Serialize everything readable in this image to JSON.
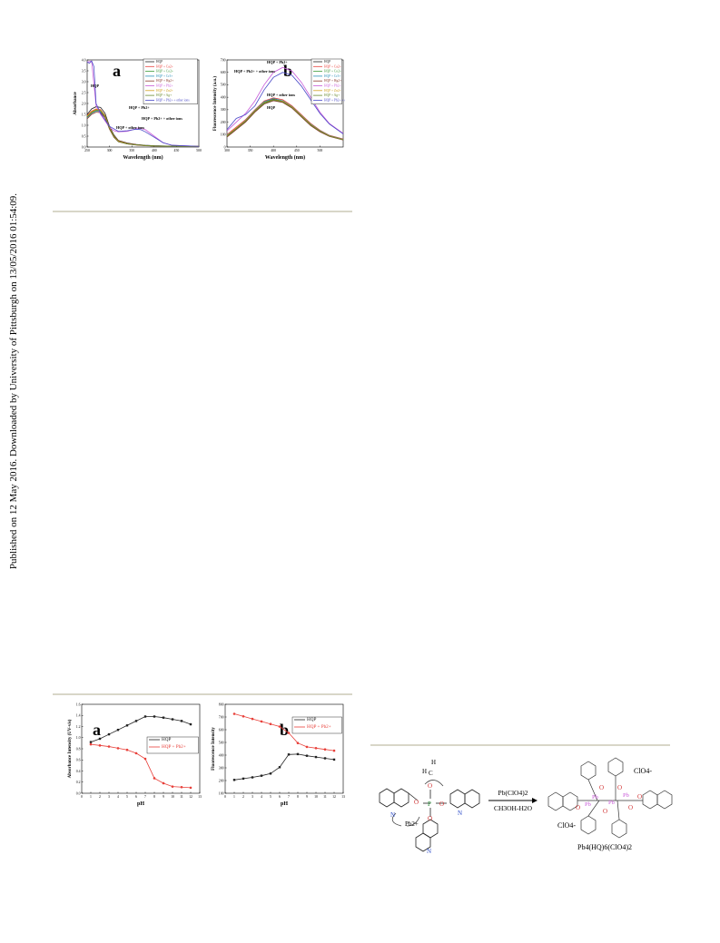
{
  "side_note": "Published on 12 May 2016. Downloaded by University of Pittsburgh on 13/05/2016 01:54:09.",
  "colors": {
    "HQP": "#222222",
    "HQP + Ca": "#e8403a",
    "HQP + Co": "#3d9a3a",
    "HQP + Cr": "#2a8fb8",
    "HQP + Hg": "#8b3a2e",
    "HQP + Pb": "#c85ad8",
    "HQP + Zn": "#d0a020",
    "HQP + Ag": "#6a8a30",
    "HQP + Pb + other ions": "#4a4ac8",
    "rule": "#d8d6c8"
  },
  "chart_data": [
    {
      "id": "fig1a",
      "type": "line",
      "panel_label": "a",
      "xlabel": "Wavelength (nm)",
      "ylabel": "Absorbance",
      "xlim": [
        250,
        500
      ],
      "ylim": [
        0.0,
        4.0
      ],
      "xticks": [
        "250",
        "300",
        "350",
        "400",
        "450",
        "500"
      ],
      "yticks": [
        "0.0",
        "0.5",
        "1.0",
        "1.5",
        "2.0",
        "2.5",
        "3.0",
        "3.5",
        "4.0"
      ],
      "legend": [
        "HQP",
        "HQP + Ca2+",
        "HQP + Co2+",
        "HQP + Cr3+",
        "HQP + Hg2+",
        "HQP + Pb2+",
        "HQP + Zn2+",
        "HQP + Ag+",
        "HQP + Pb2+ + other ions"
      ],
      "annotations": [
        "HQP",
        "HQP + Pb2+",
        "HQP + Pb2+ + other ions",
        "HQP + other ions"
      ],
      "series": [
        {
          "name": "HQP",
          "color_key": "HQP",
          "x": [
            250,
            260,
            270,
            280,
            290,
            300,
            310,
            320,
            340,
            360,
            380,
            400,
            440,
            500
          ],
          "y": [
            1.5,
            1.75,
            1.85,
            1.82,
            1.55,
            0.95,
            0.55,
            0.3,
            0.18,
            0.12,
            0.08,
            0.06,
            0.04,
            0.03
          ]
        },
        {
          "name": "HQP + Ca2+",
          "color_key": "HQP + Ca",
          "x": [
            250,
            260,
            270,
            280,
            290,
            300,
            310,
            320,
            340,
            360,
            380,
            400,
            440,
            500
          ],
          "y": [
            1.45,
            1.65,
            1.75,
            1.72,
            1.45,
            0.9,
            0.5,
            0.28,
            0.16,
            0.11,
            0.07,
            0.05,
            0.04,
            0.03
          ]
        },
        {
          "name": "HQP + Co2+",
          "color_key": "HQP + Co",
          "x": [
            250,
            260,
            270,
            280,
            290,
            300,
            310,
            320,
            340,
            360,
            380,
            400,
            440,
            500
          ],
          "y": [
            1.4,
            1.6,
            1.7,
            1.68,
            1.42,
            0.88,
            0.48,
            0.26,
            0.15,
            0.1,
            0.07,
            0.05,
            0.04,
            0.03
          ]
        },
        {
          "name": "HQP + Cr3+",
          "color_key": "HQP + Cr",
          "x": [
            250,
            260,
            270,
            280,
            290,
            300,
            310,
            320,
            340,
            360,
            380,
            400,
            440,
            500
          ],
          "y": [
            1.35,
            1.55,
            1.65,
            1.62,
            1.38,
            0.85,
            0.46,
            0.25,
            0.14,
            0.1,
            0.07,
            0.05,
            0.04,
            0.03
          ]
        },
        {
          "name": "HQP + Hg2+",
          "color_key": "HQP + Hg",
          "x": [
            250,
            260,
            270,
            280,
            290,
            300,
            310,
            320,
            340,
            360,
            380,
            400,
            440,
            500
          ],
          "y": [
            1.3,
            1.5,
            1.6,
            1.58,
            1.35,
            0.82,
            0.44,
            0.24,
            0.14,
            0.09,
            0.06,
            0.05,
            0.04,
            0.03
          ]
        },
        {
          "name": "HQP + Pb2+",
          "color_key": "HQP + Pb",
          "x": [
            250,
            260,
            270,
            280,
            290,
            300,
            310,
            320,
            340,
            360,
            365,
            380,
            400,
            420,
            440,
            500
          ],
          "y": [
            3.9,
            3.95,
            1.9,
            1.5,
            1.2,
            0.9,
            0.75,
            0.7,
            0.72,
            0.85,
            0.88,
            0.8,
            0.5,
            0.2,
            0.08,
            0.03
          ]
        },
        {
          "name": "HQP + Zn2+",
          "color_key": "HQP + Zn",
          "x": [
            250,
            260,
            270,
            280,
            290,
            300,
            310,
            320,
            340,
            360,
            380,
            400,
            440,
            500
          ],
          "y": [
            1.42,
            1.62,
            1.72,
            1.7,
            1.44,
            0.89,
            0.49,
            0.27,
            0.15,
            0.1,
            0.07,
            0.05,
            0.04,
            0.03
          ]
        },
        {
          "name": "HQP + Ag+",
          "color_key": "HQP + Ag",
          "x": [
            250,
            260,
            270,
            280,
            290,
            300,
            310,
            320,
            340,
            360,
            380,
            400,
            440,
            500
          ],
          "y": [
            1.38,
            1.58,
            1.68,
            1.66,
            1.4,
            0.86,
            0.47,
            0.25,
            0.14,
            0.1,
            0.07,
            0.05,
            0.04,
            0.03
          ]
        },
        {
          "name": "HQP + Pb2+ + other ions",
          "color_key": "HQP + Pb + other ions",
          "x": [
            250,
            255,
            260,
            265,
            270,
            280,
            290,
            300,
            320,
            340,
            360,
            370,
            380,
            400,
            420,
            440,
            500
          ],
          "y": [
            3.9,
            3.85,
            3.95,
            3.7,
            2.0,
            1.55,
            1.25,
            0.95,
            0.72,
            0.75,
            0.82,
            0.8,
            0.7,
            0.45,
            0.2,
            0.08,
            0.03
          ]
        }
      ]
    },
    {
      "id": "fig1b",
      "type": "line",
      "panel_label": "b",
      "xlabel": "Wavelength (nm)",
      "ylabel": "Fluorescence Intensity (a.u.)",
      "xlim": [
        300,
        550
      ],
      "ylim": [
        0,
        700
      ],
      "xticks": [
        "300",
        "350",
        "400",
        "450",
        "500"
      ],
      "yticks": [
        "0",
        "100",
        "200",
        "300",
        "400",
        "500",
        "600",
        "700"
      ],
      "legend": [
        "HQP",
        "HQP + Ca2+",
        "HQP + Co2+",
        "HQP + Cr3+",
        "HQP + Hg2+",
        "HQP + Pb2+",
        "HQP + Zn2+",
        "HQP + Ag+",
        "HQP + Pb2+ + other ions"
      ],
      "annotations": [
        "HQP + Pb2+",
        "HQP + Pb2+ + other ions",
        "HQP + other ions",
        "HQP"
      ],
      "series": [
        {
          "name": "HQP",
          "color_key": "HQP",
          "x": [
            300,
            320,
            340,
            360,
            380,
            400,
            420,
            440,
            460,
            480,
            500,
            520,
            550
          ],
          "y": [
            90,
            150,
            210,
            290,
            360,
            385,
            370,
            320,
            250,
            180,
            130,
            90,
            60
          ]
        },
        {
          "name": "HQP + Ca2+",
          "color_key": "HQP + Ca",
          "x": [
            300,
            320,
            340,
            360,
            380,
            400,
            420,
            440,
            460,
            480,
            500,
            520,
            550
          ],
          "y": [
            100,
            160,
            220,
            300,
            370,
            395,
            380,
            330,
            260,
            190,
            135,
            95,
            65
          ]
        },
        {
          "name": "HQP + Co2+",
          "color_key": "HQP + Co",
          "x": [
            300,
            320,
            340,
            360,
            380,
            400,
            420,
            440,
            460,
            480,
            500,
            520,
            550
          ],
          "y": [
            85,
            145,
            205,
            285,
            350,
            375,
            360,
            315,
            245,
            175,
            125,
            88,
            58
          ]
        },
        {
          "name": "HQP + Cr3+",
          "color_key": "HQP + Cr",
          "x": [
            300,
            320,
            340,
            360,
            380,
            400,
            420,
            440,
            460,
            480,
            500,
            520,
            550
          ],
          "y": [
            95,
            150,
            215,
            295,
            365,
            390,
            372,
            325,
            255,
            185,
            132,
            92,
            62
          ]
        },
        {
          "name": "HQP + Hg2+",
          "color_key": "HQP + Hg",
          "x": [
            300,
            320,
            340,
            360,
            380,
            400,
            420,
            440,
            460,
            480,
            500,
            520,
            550
          ],
          "y": [
            80,
            140,
            200,
            280,
            345,
            372,
            358,
            312,
            242,
            172,
            122,
            86,
            57
          ]
        },
        {
          "name": "HQP + Pb2+",
          "color_key": "HQP + Pb",
          "x": [
            300,
            320,
            340,
            360,
            380,
            400,
            420,
            440,
            460,
            480,
            500,
            520,
            550
          ],
          "y": [
            130,
            200,
            270,
            370,
            500,
            600,
            640,
            610,
            520,
            400,
            280,
            190,
            110
          ]
        },
        {
          "name": "HQP + Zn2+",
          "color_key": "HQP + Zn",
          "x": [
            300,
            320,
            340,
            360,
            380,
            400,
            420,
            440,
            460,
            480,
            500,
            520,
            550
          ],
          "y": [
            92,
            152,
            212,
            292,
            358,
            382,
            368,
            322,
            252,
            182,
            130,
            90,
            60
          ]
        },
        {
          "name": "HQP + Ag+",
          "color_key": "HQP + Ag",
          "x": [
            300,
            320,
            340,
            360,
            380,
            400,
            420,
            440,
            460,
            480,
            500,
            520,
            550
          ],
          "y": [
            88,
            148,
            208,
            288,
            355,
            380,
            364,
            318,
            248,
            178,
            128,
            89,
            59
          ]
        },
        {
          "name": "HQP + Pb2+ + other ions",
          "color_key": "HQP + Pb + other ions",
          "x": [
            300,
            320,
            340,
            360,
            380,
            400,
            420,
            440,
            460,
            480,
            500,
            520,
            550
          ],
          "y": [
            140,
            230,
            260,
            330,
            460,
            560,
            600,
            575,
            490,
            380,
            270,
            185,
            105
          ]
        }
      ]
    },
    {
      "id": "fig2a",
      "type": "line",
      "panel_label": "a",
      "xlabel": "pH",
      "ylabel": "Absorbance Intensity (UV-vis)",
      "xlim": [
        0,
        13
      ],
      "ylim": [
        0.0,
        1.6
      ],
      "xticks": [
        "0",
        "1",
        "2",
        "3",
        "4",
        "5",
        "6",
        "7",
        "8",
        "9",
        "10",
        "11",
        "12",
        "13"
      ],
      "yticks": [
        "0.0",
        "0.2",
        "0.4",
        "0.6",
        "0.8",
        "1.0",
        "1.2",
        "1.4",
        "1.6"
      ],
      "legend": [
        "HQP",
        "HQP + Pb2+"
      ],
      "series": [
        {
          "name": "HQP",
          "color_key": "HQP",
          "marker": "square",
          "x": [
            1,
            2,
            3,
            4,
            5,
            6,
            7,
            8,
            9,
            10,
            11,
            12
          ],
          "y": [
            0.92,
            0.98,
            1.06,
            1.14,
            1.22,
            1.3,
            1.38,
            1.38,
            1.36,
            1.33,
            1.3,
            1.24
          ]
        },
        {
          "name": "HQP + Pb2+",
          "color_key": "HQP + Ca",
          "marker": "circle",
          "x": [
            1,
            2,
            3,
            4,
            5,
            6,
            7,
            8,
            9,
            10,
            11,
            12
          ],
          "y": [
            0.88,
            0.86,
            0.84,
            0.81,
            0.78,
            0.72,
            0.62,
            0.27,
            0.18,
            0.12,
            0.11,
            0.1
          ]
        }
      ]
    },
    {
      "id": "fig2b",
      "type": "line",
      "panel_label": "b",
      "xlabel": "pH",
      "ylabel": "Fluorescence Intensity",
      "xlim": [
        0,
        13
      ],
      "ylim": [
        100,
        800
      ],
      "xticks": [
        "0",
        "1",
        "2",
        "3",
        "4",
        "5",
        "6",
        "7",
        "8",
        "9",
        "10",
        "11",
        "12",
        "13"
      ],
      "yticks": [
        "100",
        "200",
        "300",
        "400",
        "500",
        "600",
        "700",
        "800"
      ],
      "legend": [
        "HQP",
        "HQP + Pb2+"
      ],
      "series": [
        {
          "name": "HQP",
          "color_key": "HQP",
          "marker": "square",
          "x": [
            1,
            2,
            3,
            4,
            5,
            6,
            7,
            8,
            9,
            10,
            11,
            12
          ],
          "y": [
            205,
            215,
            225,
            238,
            255,
            305,
            405,
            408,
            395,
            385,
            375,
            365
          ]
        },
        {
          "name": "HQP + Pb2+",
          "color_key": "HQP + Ca",
          "marker": "circle",
          "x": [
            1,
            2,
            3,
            4,
            5,
            6,
            7,
            8,
            9,
            10,
            11,
            12
          ],
          "y": [
            725,
            705,
            685,
            665,
            645,
            625,
            575,
            495,
            465,
            455,
            445,
            435
          ]
        }
      ]
    }
  ],
  "scheme": {
    "reagent": "Pb(ClO4)2",
    "solvent": "CH3OH-H2O",
    "product": "Pb4(HQ)6(ClO4)2",
    "anion_top": "ClO4-",
    "anion_left": "ClO4-",
    "lead_label": "Pb2+",
    "h_label": "H",
    "h2_label": "H",
    "c_label": "C"
  }
}
